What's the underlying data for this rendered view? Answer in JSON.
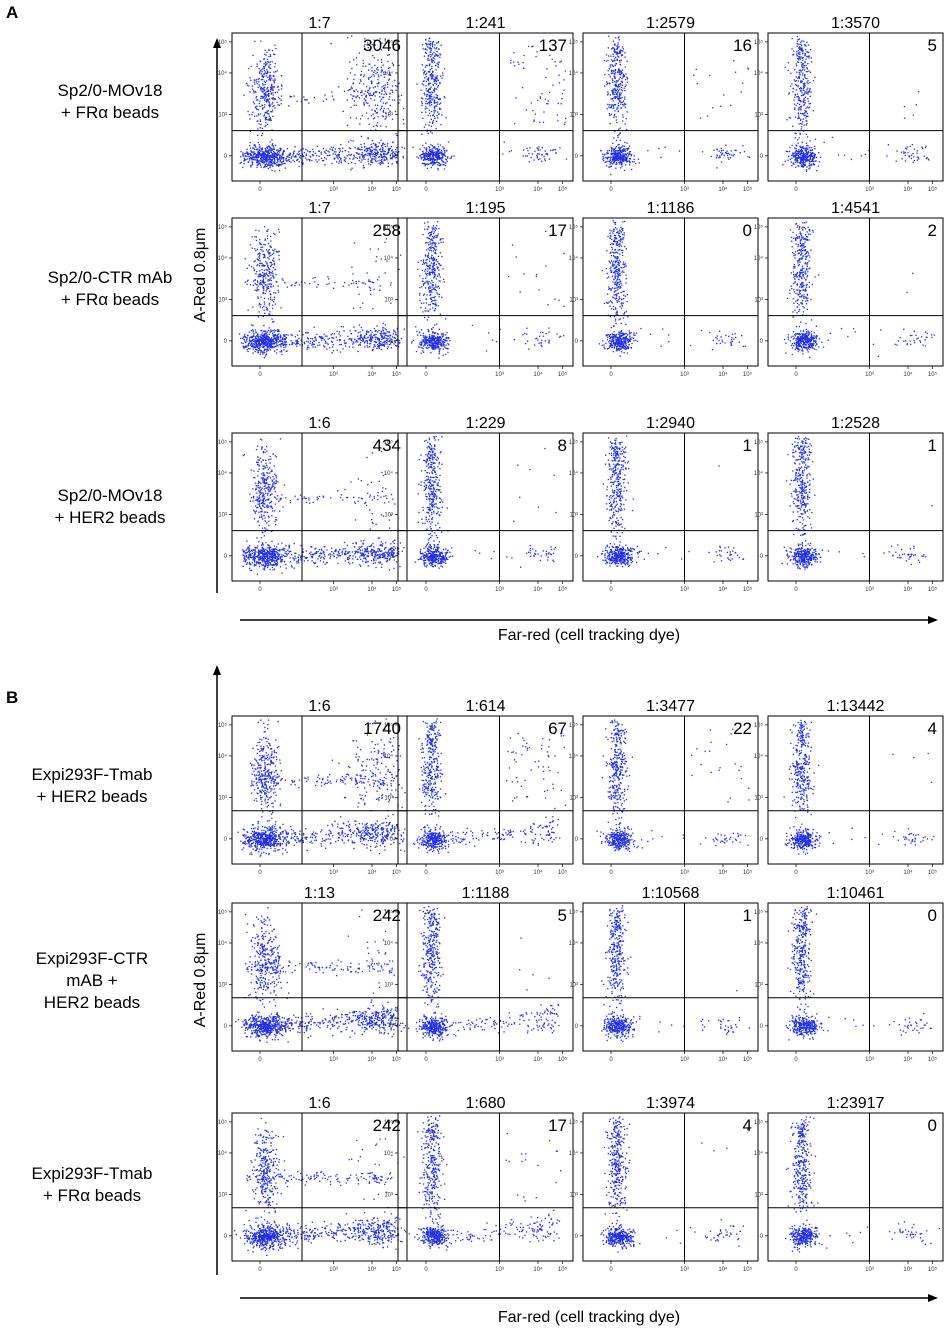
{
  "chart_data": [
    {
      "type": "scatter",
      "panel": "A",
      "xlabel": "Far-red (cell tracking dye)",
      "ylabel": "A-Red 0.8μm",
      "axis_ticks": {
        "x": [
          "0",
          "10³",
          "10⁴",
          "10⁵"
        ],
        "y": [
          "0",
          "10³",
          "10⁴",
          "10⁵"
        ]
      },
      "rows": [
        {
          "label_lines": [
            "Sp2/0-MOv18",
            "+ FRα beads"
          ],
          "plots": [
            {
              "ratio": "1:7",
              "count": "3046",
              "upper_right_events": 3046
            },
            {
              "ratio": "1:241",
              "count": "137",
              "upper_right_events": 137
            },
            {
              "ratio": "1:2579",
              "count": "16",
              "upper_right_events": 16
            },
            {
              "ratio": "1:3570",
              "count": "5",
              "upper_right_events": 5
            }
          ]
        },
        {
          "label_lines": [
            "Sp2/0-CTR mAb",
            "+ FRα beads"
          ],
          "plots": [
            {
              "ratio": "1:7",
              "count": "258",
              "upper_right_events": 258
            },
            {
              "ratio": "1:195",
              "count": "17",
              "upper_right_events": 17
            },
            {
              "ratio": "1:1186",
              "count": "0",
              "upper_right_events": 0
            },
            {
              "ratio": "1:4541",
              "count": "2",
              "upper_right_events": 2
            }
          ]
        },
        {
          "label_lines": [
            "Sp2/0-MOv18",
            "+ HER2 beads"
          ],
          "plots": [
            {
              "ratio": "1:6",
              "count": "434",
              "upper_right_events": 434
            },
            {
              "ratio": "1:229",
              "count": "8",
              "upper_right_events": 8
            },
            {
              "ratio": "1:2940",
              "count": "1",
              "upper_right_events": 1
            },
            {
              "ratio": "1:2528",
              "count": "1",
              "upper_right_events": 1
            }
          ]
        }
      ]
    },
    {
      "type": "scatter",
      "panel": "B",
      "xlabel": "Far-red (cell tracking dye)",
      "ylabel": "A-Red 0.8μm",
      "axis_ticks": {
        "x": [
          "0",
          "10³",
          "10⁴",
          "10⁵"
        ],
        "y": [
          "0",
          "10³",
          "10⁴",
          "10⁵"
        ]
      },
      "rows": [
        {
          "label_lines": [
            "Expi293F-Tmab",
            "+ HER2 beads"
          ],
          "plots": [
            {
              "ratio": "1:6",
              "count": "1740",
              "upper_right_events": 1740
            },
            {
              "ratio": "1:614",
              "count": "67",
              "upper_right_events": 67
            },
            {
              "ratio": "1:3477",
              "count": "22",
              "upper_right_events": 22
            },
            {
              "ratio": "1:13442",
              "count": "4",
              "upper_right_events": 4
            }
          ]
        },
        {
          "label_lines": [
            "Expi293F-CTR",
            "mAB +",
            "HER2 beads"
          ],
          "plots": [
            {
              "ratio": "1:13",
              "count": "242",
              "upper_right_events": 242
            },
            {
              "ratio": "1:1188",
              "count": "5",
              "upper_right_events": 5
            },
            {
              "ratio": "1:10568",
              "count": "1",
              "upper_right_events": 1
            },
            {
              "ratio": "1:10461",
              "count": "0",
              "upper_right_events": 0
            }
          ]
        },
        {
          "label_lines": [
            "Expi293F-Tmab",
            "+ FRα beads"
          ],
          "plots": [
            {
              "ratio": "1:6",
              "count": "242",
              "upper_right_events": 242
            },
            {
              "ratio": "1:680",
              "count": "17",
              "upper_right_events": 17
            },
            {
              "ratio": "1:3974",
              "count": "4",
              "upper_right_events": 4
            },
            {
              "ratio": "1:23917",
              "count": "0",
              "upper_right_events": 0
            }
          ]
        }
      ]
    }
  ],
  "colors": {
    "dots": "#1f2ee6",
    "axes": "#000000"
  }
}
